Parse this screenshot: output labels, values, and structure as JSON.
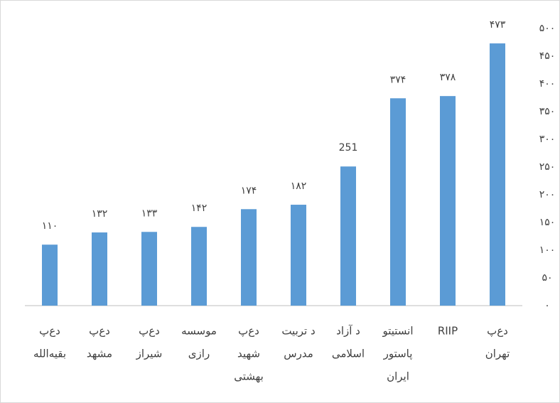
{
  "chart_data": {
    "type": "bar",
    "categories": [
      [
        "دع‌پ",
        "بقیه‌الله"
      ],
      [
        "دع‌پ",
        "مشهد"
      ],
      [
        "دع‌پ",
        "شیراز"
      ],
      [
        "موسسه",
        "رازی"
      ],
      [
        "دع‌پ",
        "شهید",
        "بهشتی"
      ],
      [
        "د تربیت",
        "مدرس"
      ],
      [
        "د آزاد",
        "اسلامی"
      ],
      [
        "انستیتو",
        "پاستور",
        "ایران"
      ],
      [
        "RIIP"
      ],
      [
        "دع‌پ",
        "تهران"
      ]
    ],
    "values": [
      110,
      132,
      133,
      142,
      174,
      182,
      251,
      374,
      378,
      473
    ],
    "value_labels": [
      "۱۱۰",
      "۱۳۲",
      "۱۳۳",
      "۱۴۲",
      "۱۷۴",
      "۱۸۲",
      "251",
      "۳۷۴",
      "۳۷۸",
      "۴۷۳"
    ],
    "color": "#5b9bd5",
    "ylim": [
      0,
      500
    ],
    "yticks": [
      {
        "value": 0,
        "label": "۰"
      },
      {
        "value": 50,
        "label": "۵۰"
      },
      {
        "value": 100,
        "label": "۱۰۰"
      },
      {
        "value": 150,
        "label": "۱۵۰"
      },
      {
        "value": 200,
        "label": "۲۰۰"
      },
      {
        "value": 250,
        "label": "۲۵۰"
      },
      {
        "value": 300,
        "label": "۳۰۰"
      },
      {
        "value": 350,
        "label": "۳۵۰"
      },
      {
        "value": 400,
        "label": "۴۰۰"
      },
      {
        "value": 450,
        "label": "۴۵۰"
      },
      {
        "value": 500,
        "label": "۵۰۰"
      }
    ],
    "y_axis_side": "right",
    "grid": false
  }
}
